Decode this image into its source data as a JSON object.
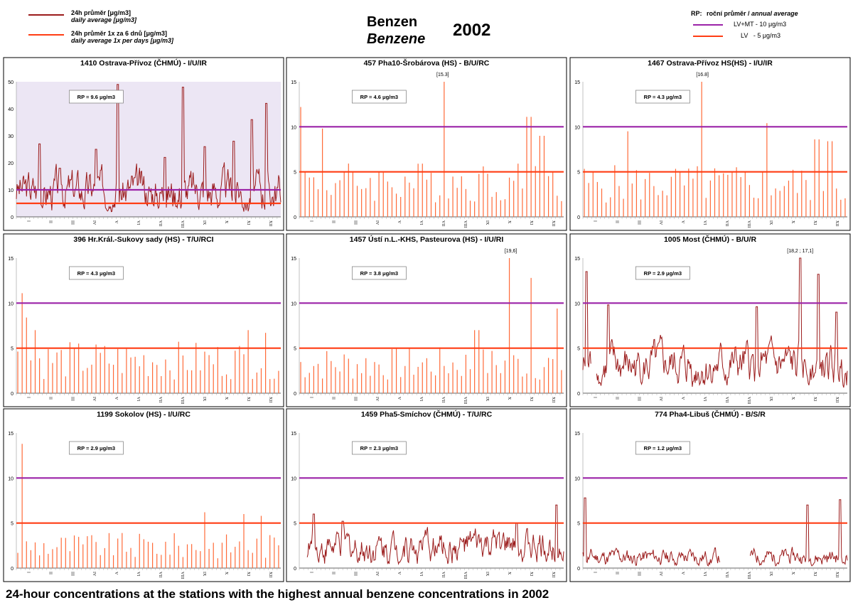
{
  "header": {
    "legend_left": [
      {
        "label_cz": "24h průměr [μg/m3]",
        "label_en": "daily average [μg/m3]",
        "color": "#9b1b1b"
      },
      {
        "label_cz": "24h průměr 1x za 6 dnů [μg/m3]",
        "label_en": "daily average 1x per days [μg/m3]",
        "color": "#ff3d14"
      }
    ],
    "title_cz": "Benzen",
    "title_en": "Benzene",
    "year": "2002",
    "legend_right": {
      "rp_label": "RP:",
      "rp_cz": "roční průměr /",
      "rp_en": "annual average",
      "items": [
        {
          "label": "LV+MT - 10 μg/m3",
          "color": "#9b23a8"
        },
        {
          "label": "LV   - 5 μg/m3",
          "color": "#ff3d14"
        }
      ]
    }
  },
  "caption": "24-hour concentrations at the stations with the highest annual benzene concentrations in 2002",
  "chart_data": [
    {
      "type": "line",
      "title": "1410 Ostrava-Přívoz (ČHMÚ) - I/U/IR",
      "rp": "RP = 9.6 μg/m3",
      "ylim": [
        0,
        50
      ],
      "yticks": [
        0,
        10,
        20,
        30,
        40,
        50
      ],
      "mode": "line",
      "mean": 9.6,
      "peaks": [
        [
          32,
          27
        ],
        [
          60,
          18
        ],
        [
          110,
          25
        ],
        [
          140,
          49
        ],
        [
          205,
          22
        ],
        [
          230,
          48
        ],
        [
          260,
          26
        ],
        [
          300,
          28
        ],
        [
          325,
          36
        ],
        [
          345,
          42
        ]
      ],
      "gaps": [],
      "outlier": null,
      "limits": [
        {
          "value": 10,
          "color": "#9b23a8"
        },
        {
          "value": 5,
          "color": "#ff3d14"
        }
      ],
      "months": [
        "I",
        "II",
        "III",
        "IV",
        "V",
        "VI",
        "VII",
        "VIII",
        "IX",
        "X",
        "XI",
        "XII"
      ],
      "plot_bg": "#ece6f4"
    },
    {
      "type": "bar",
      "title": "457 Pha10-Šrobárova (HS) - B/U/RC",
      "rp": "RP = 4.6 μg/m3",
      "ylim": [
        0,
        15
      ],
      "yticks": [
        0,
        5,
        10,
        15
      ],
      "mode": "bars",
      "mean": 4.6,
      "peaks": [
        [
          3,
          12.2
        ],
        [
          33,
          9.8
        ],
        [
          198,
          15.0
        ],
        [
          317,
          11.1
        ],
        [
          335,
          9.0
        ]
      ],
      "gaps": [],
      "outlier": "[15.3]",
      "limits": [
        {
          "value": 10,
          "color": "#9b23a8"
        },
        {
          "value": 5,
          "color": "#ff3d14"
        }
      ],
      "months": [
        "I",
        "II",
        "III",
        "IV",
        "V",
        "VI",
        "VII",
        "VIII",
        "IX",
        "X",
        "XI",
        "XII"
      ],
      "plot_bg": "#ffffff"
    },
    {
      "type": "bar",
      "title": "1467 Ostrava-Přívoz HS(HS) - I/U/IR",
      "rp": "RP = 4.3 μg/m3",
      "ylim": [
        0,
        15
      ],
      "yticks": [
        0,
        5,
        10,
        15
      ],
      "mode": "bars",
      "mean": 4.3,
      "peaks": [
        [
          63,
          9.5
        ],
        [
          165,
          15.0
        ],
        [
          253,
          10.4
        ],
        [
          323,
          8.6
        ],
        [
          341,
          8.4
        ]
      ],
      "gaps": [],
      "outlier": "[16.8]",
      "limits": [
        {
          "value": 10,
          "color": "#9b23a8"
        },
        {
          "value": 5,
          "color": "#ff3d14"
        }
      ],
      "months": [
        "I",
        "II",
        "III",
        "IV",
        "V",
        "VI",
        "VII",
        "VIII",
        "IX",
        "X",
        "XI",
        "XII"
      ],
      "plot_bg": "#ffffff"
    },
    {
      "type": "bar",
      "title": "396 Hr.Král.-Sukovy sady (HS) - T/U/RCI",
      "rp": "RP = 4.3 μg/m3",
      "ylim": [
        0,
        15
      ],
      "yticks": [
        0,
        5,
        10,
        15
      ],
      "mode": "bars",
      "mean": 4.3,
      "peaks": [
        [
          8,
          11.1
        ],
        [
          14,
          8.4
        ],
        [
          26,
          7.0
        ],
        [
          318,
          7.0
        ],
        [
          342,
          6.7
        ]
      ],
      "gaps": [],
      "outlier": null,
      "limits": [
        {
          "value": 10,
          "color": "#9b23a8"
        },
        {
          "value": 5,
          "color": "#ff3d14"
        }
      ],
      "months": [
        "I",
        "II",
        "III",
        "IV",
        "V",
        "VI",
        "VII",
        "VIII",
        "IX",
        "X",
        "XI",
        "XII"
      ],
      "plot_bg": "#ffffff"
    },
    {
      "type": "bar",
      "title": "1457 Ústí n.L.-KHS, Pasteurova (HS) - I/U/RI",
      "rp": "RP = 3.8 μg/m3",
      "ylim": [
        0,
        15
      ],
      "yticks": [
        0,
        5,
        10,
        15
      ],
      "mode": "bars",
      "mean": 3.8,
      "peaks": [
        [
          245,
          7.0
        ],
        [
          292,
          15.0
        ],
        [
          318,
          12.8
        ],
        [
          355,
          9.4
        ]
      ],
      "gaps": [],
      "outlier": "[19,6]",
      "limits": [
        {
          "value": 10,
          "color": "#9b23a8"
        },
        {
          "value": 5,
          "color": "#ff3d14"
        }
      ],
      "months": [
        "I",
        "II",
        "III",
        "IV",
        "V",
        "VI",
        "VII",
        "VIII",
        "IX",
        "X",
        "XI",
        "XII"
      ],
      "plot_bg": "#ffffff"
    },
    {
      "type": "line",
      "title": "1005 Most (ČHMÚ) - B/U/R",
      "rp": "RP = 2.9 μg/m3",
      "ylim": [
        0,
        15
      ],
      "yticks": [
        0,
        5,
        10,
        15
      ],
      "mode": "line",
      "mean": 2.9,
      "peaks": [
        [
          5,
          13.5
        ],
        [
          35,
          9.8
        ],
        [
          240,
          9.6
        ],
        [
          300,
          15.0
        ],
        [
          325,
          13.2
        ],
        [
          350,
          9.0
        ]
      ],
      "gaps": [
        [
          12,
          18
        ]
      ],
      "outlier": "[18,2 ; 17,1]",
      "limits": [
        {
          "value": 10,
          "color": "#9b23a8"
        },
        {
          "value": 5,
          "color": "#ff3d14"
        }
      ],
      "months": [
        "I",
        "II",
        "III",
        "IV",
        "V",
        "VI",
        "VII",
        "VIII",
        "IX",
        "X",
        "XI",
        "XII"
      ],
      "plot_bg": "#ffffff"
    },
    {
      "type": "bar",
      "title": "1199 Sokolov (HS) - I/U/RC",
      "rp": "RP = 2.9 μg/m3",
      "ylim": [
        0,
        15
      ],
      "yticks": [
        0,
        5,
        10,
        15
      ],
      "mode": "bars",
      "mean": 2.9,
      "peaks": [
        [
          6,
          13.8
        ],
        [
          258,
          6.2
        ],
        [
          315,
          6.0
        ],
        [
          336,
          5.8
        ]
      ],
      "gaps": [],
      "outlier": null,
      "limits": [
        {
          "value": 10,
          "color": "#9b23a8"
        },
        {
          "value": 5,
          "color": "#ff3d14"
        }
      ],
      "months": [
        "I",
        "II",
        "III",
        "IV",
        "V",
        "VI",
        "VII",
        "VIII",
        "IX",
        "X",
        "XI",
        "XII"
      ],
      "plot_bg": "#ffffff"
    },
    {
      "type": "line",
      "title": "1459 Pha5-Smíchov (ČHMÚ) - T/U/RC",
      "rp": "RP = 2.3 μg/m3",
      "ylim": [
        0,
        15
      ],
      "yticks": [
        0,
        5,
        10,
        15
      ],
      "mode": "line",
      "mean": 2.3,
      "peaks": [
        [
          20,
          6.0
        ],
        [
          60,
          5.2
        ],
        [
          300,
          5.0
        ],
        [
          355,
          7.0
        ]
      ],
      "gaps": [
        [
          0,
          10
        ]
      ],
      "outlier": null,
      "limits": [
        {
          "value": 10,
          "color": "#9b23a8"
        },
        {
          "value": 5,
          "color": "#ff3d14"
        }
      ],
      "months": [
        "I",
        "II",
        "III",
        "IV",
        "V",
        "VI",
        "VII",
        "VIII",
        "IX",
        "X",
        "XI",
        "XII"
      ],
      "plot_bg": "#ffffff"
    },
    {
      "type": "line",
      "title": "774 Pha4-Libuš (ČHMÚ) - B/S/R",
      "rp": "RP = 1.2 μg/m3",
      "ylim": [
        0,
        15
      ],
      "yticks": [
        0,
        5,
        10,
        15
      ],
      "mode": "line",
      "mean": 1.2,
      "peaks": [
        [
          3,
          7.8
        ],
        [
          310,
          7.0
        ],
        [
          355,
          7.6
        ]
      ],
      "gaps": [
        [
          190,
          230
        ]
      ],
      "outlier": null,
      "limits": [
        {
          "value": 10,
          "color": "#9b23a8"
        },
        {
          "value": 5,
          "color": "#ff3d14"
        }
      ],
      "months": [
        "I",
        "II",
        "III",
        "IV",
        "V",
        "VI",
        "VII",
        "VIII",
        "IX",
        "X",
        "XI",
        "XII"
      ],
      "plot_bg": "#ffffff"
    }
  ]
}
